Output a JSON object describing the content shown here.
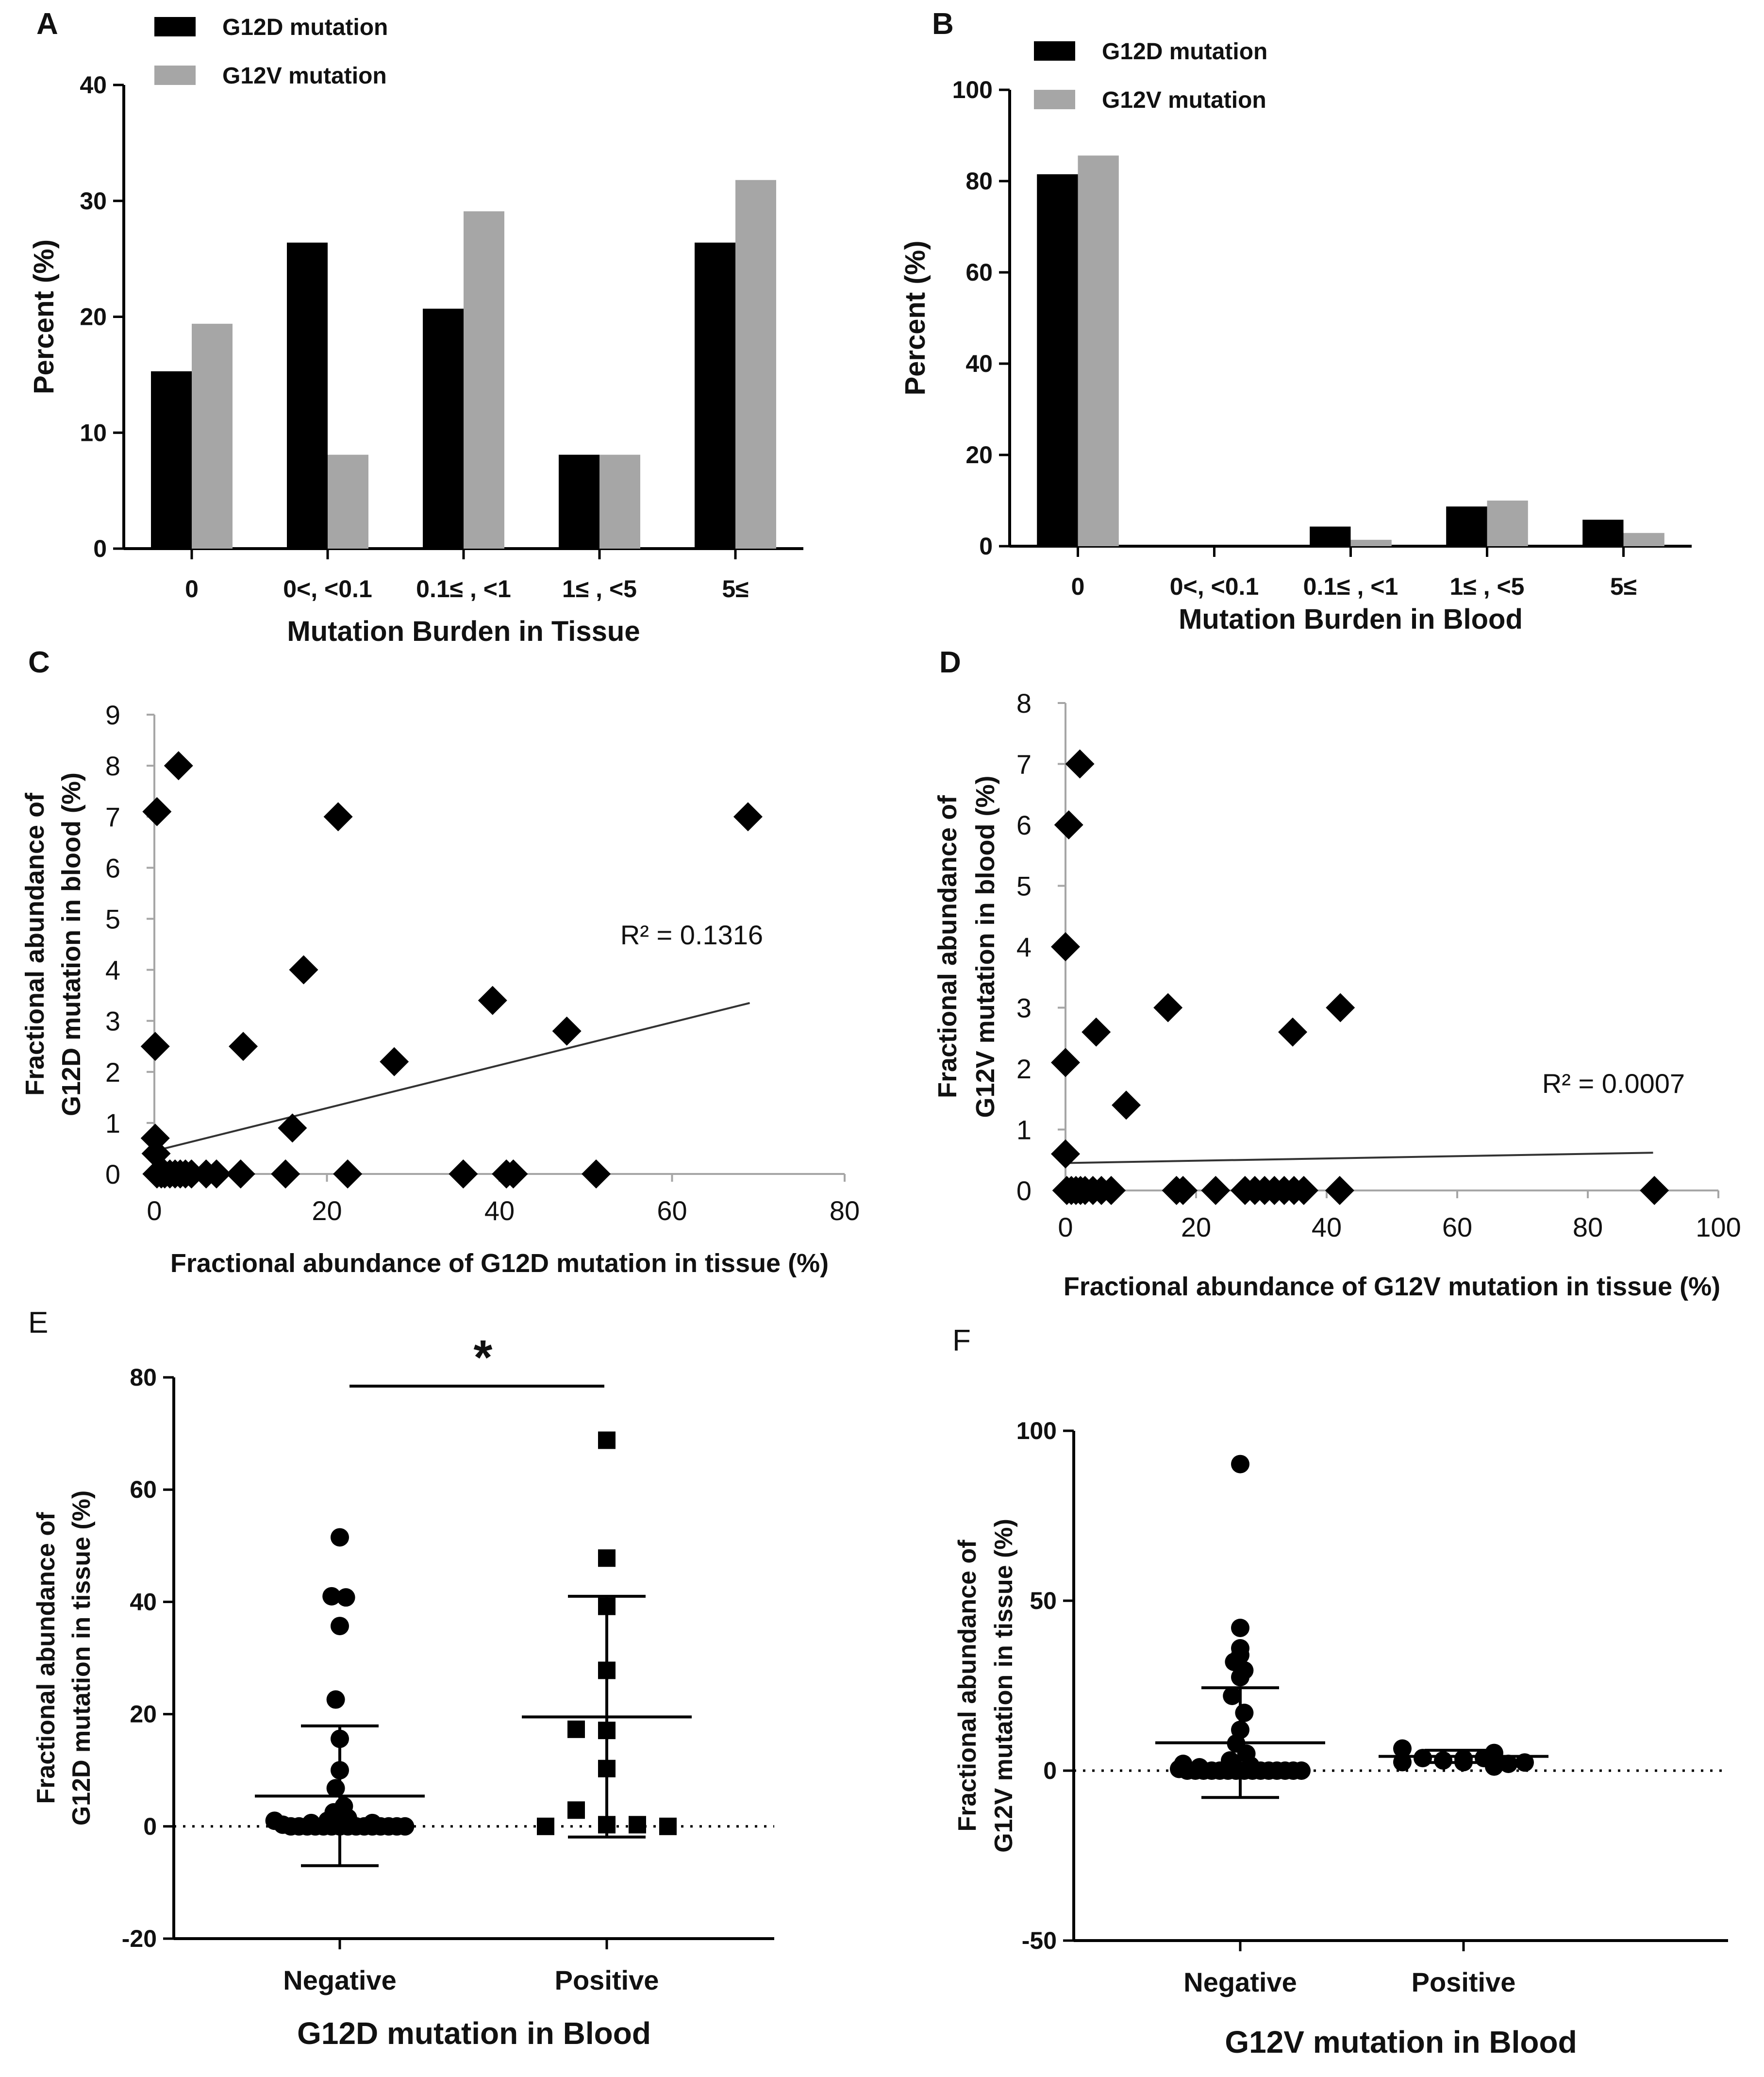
{
  "chart_data": [
    {
      "id": "A",
      "type": "bar",
      "letter": "A",
      "categories": [
        "0",
        "0<, <0.1",
        "0.1≤ , <1",
        "1≤ , <5",
        "5≤"
      ],
      "series": [
        {
          "name": "G12D mutation",
          "color": "#000000",
          "values": [
            15.3,
            26.4,
            20.7,
            8.1,
            26.4
          ]
        },
        {
          "name": "G12V mutation",
          "color": "#a6a6a6",
          "values": [
            19.4,
            8.1,
            29.1,
            8.1,
            31.8
          ]
        }
      ],
      "ylim": [
        0,
        40
      ],
      "yticks": [
        0,
        10,
        20,
        30,
        40
      ],
      "xlabel": "Mutation Burden in Tissue",
      "ylabel": "Percent (%)"
    },
    {
      "id": "B",
      "type": "bar",
      "letter": "B",
      "categories": [
        "0",
        "0<, <0.1",
        "0.1≤ , <1",
        "1≤ , <5",
        "5≤"
      ],
      "series": [
        {
          "name": "G12D mutation",
          "color": "#000000",
          "values": [
            81.5,
            0,
            4.3,
            8.7,
            5.8
          ]
        },
        {
          "name": "G12V mutation",
          "color": "#a6a6a6",
          "values": [
            85.6,
            0,
            1.4,
            10.0,
            2.9
          ]
        }
      ],
      "ylim": [
        0,
        100
      ],
      "yticks": [
        0,
        20,
        40,
        60,
        80,
        100
      ],
      "xlabel": "Mutation Burden in Blood",
      "ylabel": "Percent (%)"
    },
    {
      "id": "C",
      "type": "scatter",
      "letter": "C",
      "marker": "diamond",
      "xlim": [
        0,
        80
      ],
      "xticks": [
        0,
        20,
        40,
        60,
        80
      ],
      "ylim": [
        0,
        9
      ],
      "yticks": [
        0,
        1,
        2,
        3,
        4,
        5,
        6,
        7,
        8,
        9
      ],
      "points": [
        [
          0.3,
          7.1
        ],
        [
          2.8,
          8.0
        ],
        [
          21.3,
          7.0
        ],
        [
          68.8,
          7.0
        ],
        [
          17.3,
          4.0
        ],
        [
          39.2,
          3.4
        ],
        [
          47.8,
          2.8
        ],
        [
          0.1,
          2.5
        ],
        [
          10.3,
          2.5
        ],
        [
          27.8,
          2.2
        ],
        [
          16.0,
          0.9
        ],
        [
          0.1,
          0.7
        ],
        [
          0.2,
          0.4
        ],
        [
          0.3,
          0
        ],
        [
          0.8,
          0
        ],
        [
          1.2,
          0
        ],
        [
          1.8,
          0
        ],
        [
          2.4,
          0
        ],
        [
          3.0,
          0
        ],
        [
          3.6,
          0
        ],
        [
          4.3,
          0
        ],
        [
          6.0,
          0
        ],
        [
          7.2,
          0
        ],
        [
          10.0,
          0
        ],
        [
          15.2,
          0
        ],
        [
          22.4,
          0
        ],
        [
          35.8,
          0
        ],
        [
          40.8,
          0
        ],
        [
          41.6,
          0
        ],
        [
          51.2,
          0
        ]
      ],
      "trendline": {
        "x": [
          0,
          69
        ],
        "y": [
          0.45,
          3.35
        ]
      },
      "annotation": "R² = 0.1316",
      "xlabel": "Fractional abundance of G12D mutation in tissue (%)",
      "ylabel": [
        "Fractional abundance of",
        "G12D mutation in blood (%)"
      ]
    },
    {
      "id": "D",
      "type": "scatter",
      "letter": "D",
      "marker": "diamond",
      "xlim": [
        0,
        100
      ],
      "xticks": [
        0,
        20,
        40,
        60,
        80,
        100
      ],
      "ylim": [
        0,
        8
      ],
      "yticks": [
        0,
        1,
        2,
        3,
        4,
        5,
        6,
        7,
        8
      ],
      "points": [
        [
          2.2,
          7.0
        ],
        [
          0.5,
          6.0
        ],
        [
          0.0,
          4.0
        ],
        [
          0.0,
          2.1
        ],
        [
          4.7,
          2.6
        ],
        [
          9.3,
          1.4
        ],
        [
          15.7,
          3.0
        ],
        [
          34.8,
          2.6
        ],
        [
          42.1,
          3.0
        ],
        [
          0.0,
          0.6
        ],
        [
          0.2,
          0
        ],
        [
          0.9,
          0
        ],
        [
          1.6,
          0
        ],
        [
          2.3,
          0
        ],
        [
          3.0,
          0
        ],
        [
          4.2,
          0
        ],
        [
          5.5,
          0
        ],
        [
          7.0,
          0
        ],
        [
          17.0,
          0
        ],
        [
          18.0,
          0
        ],
        [
          23.0,
          0
        ],
        [
          27.5,
          0
        ],
        [
          29.0,
          0
        ],
        [
          30.5,
          0
        ],
        [
          32.0,
          0
        ],
        [
          33.5,
          0
        ],
        [
          35.0,
          0
        ],
        [
          36.5,
          0
        ],
        [
          42.0,
          0
        ],
        [
          90.2,
          0
        ]
      ],
      "trendline": {
        "x": [
          0,
          90
        ],
        "y": [
          0.45,
          0.62
        ]
      },
      "annotation": "R² = 0.0007",
      "xlabel": "Fractional abundance of G12V mutation in tissue (%)",
      "ylabel": [
        "Fractional abundance of",
        "G12V mutation in blood (%)"
      ]
    },
    {
      "id": "E",
      "type": "scatter",
      "letter": "E",
      "subtype": "dot-plot",
      "categories": [
        "Negative",
        "Positive"
      ],
      "ylim": [
        -20,
        80
      ],
      "yticks": [
        -20,
        0,
        20,
        40,
        60,
        80
      ],
      "groups": [
        {
          "name": "Negative",
          "marker": "circle",
          "mean": 5.4,
          "sd_low": -7.0,
          "sd_high": 17.9,
          "points": [
            [
              -0.32,
              1.0
            ],
            [
              -0.28,
              0.3
            ],
            [
              -0.24,
              0.0
            ],
            [
              -0.2,
              0.0
            ],
            [
              -0.16,
              0.0
            ],
            [
              -0.12,
              0.0
            ],
            [
              -0.08,
              0.0
            ],
            [
              -0.04,
              0.0
            ],
            [
              0.0,
              0.0
            ],
            [
              0.04,
              0.0
            ],
            [
              0.08,
              0.0
            ],
            [
              0.12,
              0.0
            ],
            [
              0.16,
              0.0
            ],
            [
              0.2,
              0.0
            ],
            [
              0.24,
              0.0
            ],
            [
              0.28,
              0.0
            ],
            [
              0.32,
              0.0
            ],
            [
              -0.06,
              1.0
            ],
            [
              0.04,
              1.5
            ],
            [
              -0.03,
              2.5
            ],
            [
              0.02,
              3.6
            ],
            [
              -0.02,
              6.8
            ],
            [
              0.0,
              10.0
            ],
            [
              0.0,
              15.6
            ],
            [
              -0.02,
              22.6
            ],
            [
              0.0,
              35.7
            ],
            [
              -0.04,
              41.0
            ],
            [
              0.03,
              40.8
            ],
            [
              0.0,
              51.5
            ],
            [
              -0.14,
              0.6
            ],
            [
              0.16,
              0.6
            ]
          ]
        },
        {
          "name": "Positive",
          "marker": "square",
          "mean": 19.5,
          "sd_low": -1.9,
          "sd_high": 41.0,
          "points": [
            [
              -0.3,
              0.0
            ],
            [
              -0.15,
              2.9
            ],
            [
              -0.15,
              17.3
            ],
            [
              0.0,
              68.8
            ],
            [
              0.0,
              47.8
            ],
            [
              0.0,
              39.2
            ],
            [
              0.0,
              27.8
            ],
            [
              0.0,
              17.1
            ],
            [
              0.0,
              10.3
            ],
            [
              0.0,
              0.3
            ],
            [
              0.15,
              0.3
            ],
            [
              0.3,
              0.0
            ]
          ]
        }
      ],
      "significance": "*",
      "xlabel": "G12D mutation in Blood",
      "ylabel": [
        "Fractional abundance of",
        "G12D mutation in tissue (%)"
      ]
    },
    {
      "id": "F",
      "type": "scatter",
      "letter": "F",
      "subtype": "dot-plot",
      "categories": [
        "Negative",
        "Positive"
      ],
      "ylim": [
        -50,
        100
      ],
      "yticks": [
        -50,
        0,
        50,
        100
      ],
      "groups": [
        {
          "name": "Negative",
          "marker": "circle",
          "mean": 8.2,
          "sd_low": -7.9,
          "sd_high": 24.4,
          "points": [
            [
              -0.3,
              0.5
            ],
            [
              -0.26,
              0.0
            ],
            [
              -0.22,
              0.0
            ],
            [
              -0.18,
              0.0
            ],
            [
              -0.14,
              0.0
            ],
            [
              -0.1,
              0.0
            ],
            [
              -0.06,
              0.0
            ],
            [
              -0.02,
              0.0
            ],
            [
              0.02,
              0.0
            ],
            [
              0.06,
              0.0
            ],
            [
              0.1,
              0.0
            ],
            [
              0.14,
              0.0
            ],
            [
              0.18,
              0.0
            ],
            [
              0.22,
              0.0
            ],
            [
              0.26,
              0.0
            ],
            [
              0.3,
              0.0
            ],
            [
              -0.28,
              2.0
            ],
            [
              -0.2,
              1.0
            ],
            [
              0.05,
              1.5
            ],
            [
              -0.05,
              3.0
            ],
            [
              0.03,
              5.0
            ],
            [
              -0.02,
              8.0
            ],
            [
              0.0,
              12.0
            ],
            [
              0.02,
              17.0
            ],
            [
              -0.04,
              22.0
            ],
            [
              0.0,
              27.5
            ],
            [
              0.02,
              29.5
            ],
            [
              -0.03,
              32.0
            ],
            [
              0.0,
              34.0
            ],
            [
              0.0,
              36.0
            ],
            [
              0.0,
              42.0
            ],
            [
              0.0,
              90.2
            ]
          ]
        },
        {
          "name": "Positive",
          "marker": "circle",
          "mean": 4.2,
          "sd_low": 2.4,
          "sd_high": 6.0,
          "points": [
            [
              -0.3,
              6.5
            ],
            [
              -0.3,
              2.5
            ],
            [
              -0.2,
              3.7
            ],
            [
              -0.1,
              3.0
            ],
            [
              0.0,
              2.5
            ],
            [
              0.0,
              3.5
            ],
            [
              0.1,
              3.7
            ],
            [
              0.15,
              5.2
            ],
            [
              0.15,
              1.2
            ],
            [
              0.22,
              2.0
            ],
            [
              0.3,
              2.4
            ]
          ]
        }
      ],
      "xlabel": "G12V mutation in Blood",
      "ylabel": [
        "Fractional abundance of",
        "G12V mutation in tissue (%)"
      ]
    }
  ]
}
